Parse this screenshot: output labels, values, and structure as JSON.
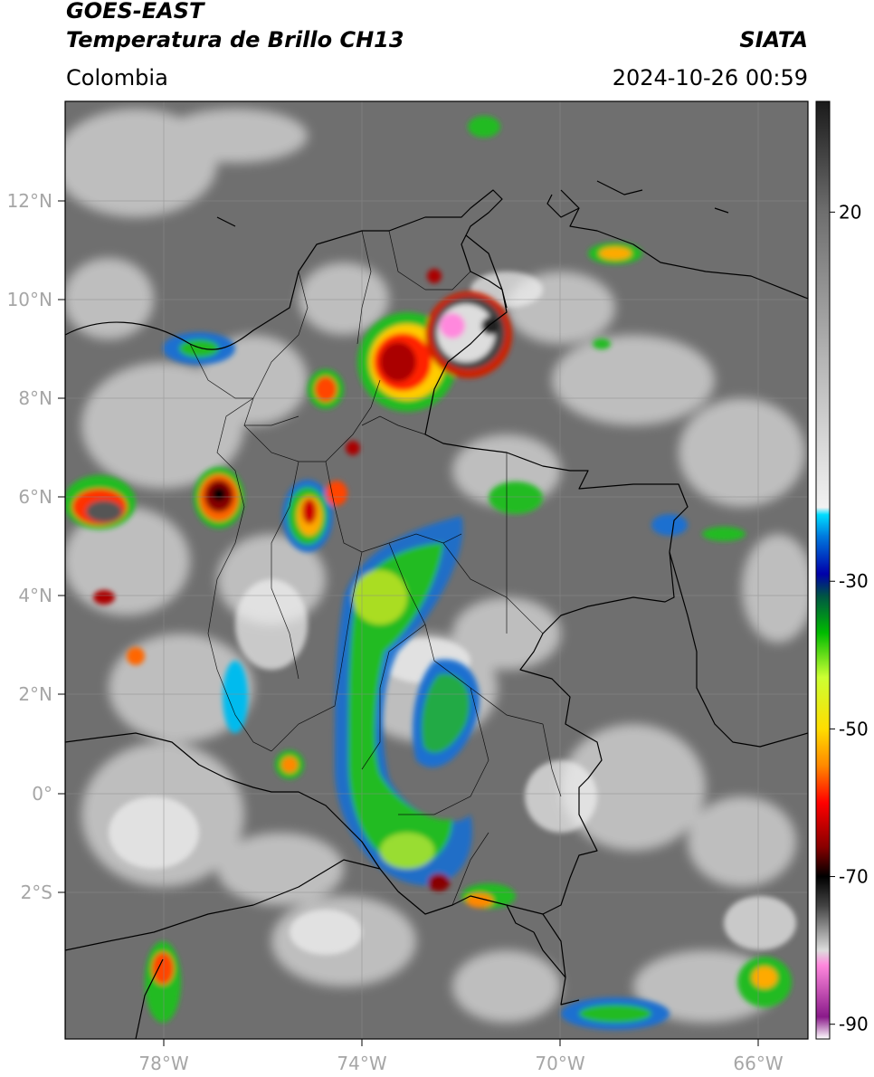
{
  "header": {
    "satellite": "GOES-EAST",
    "product": "Temperatura de Brillo CH13",
    "region": "Colombia",
    "source": "SIATA",
    "datetime": "2024-10-26 00:59"
  },
  "axes": {
    "lat_labels": [
      "12°N",
      "10°N",
      "8°N",
      "6°N",
      "4°N",
      "2°N",
      "0°",
      "2°S"
    ],
    "lat_values": [
      12,
      10,
      8,
      6,
      4,
      2,
      0,
      -2
    ],
    "lon_labels": [
      "78°W",
      "74°W",
      "70°W",
      "66°W"
    ],
    "lon_values": [
      -78,
      -74,
      -70,
      -66
    ],
    "lon_range": [
      -80,
      -65
    ],
    "lat_range": [
      -5,
      14
    ]
  },
  "colorbar": {
    "tick_labels": [
      "20",
      "-30",
      "-50",
      "-70",
      "-90"
    ],
    "tick_values": [
      20,
      -30,
      -50,
      -70,
      -90
    ],
    "range": [
      -92,
      35
    ],
    "stops": [
      {
        "v": -92,
        "c": "#ffffff"
      },
      {
        "v": -89,
        "c": "#8a1a8a"
      },
      {
        "v": -82,
        "c": "#ff88dd"
      },
      {
        "v": -80,
        "c": "#dddddd"
      },
      {
        "v": -74,
        "c": "#444444"
      },
      {
        "v": -70,
        "c": "#000000"
      },
      {
        "v": -66,
        "c": "#880000"
      },
      {
        "v": -60,
        "c": "#ff0000"
      },
      {
        "v": -55,
        "c": "#ff8800"
      },
      {
        "v": -50,
        "c": "#ffdd00"
      },
      {
        "v": -43,
        "c": "#ccff33"
      },
      {
        "v": -37,
        "c": "#00bb00"
      },
      {
        "v": -32,
        "c": "#005544"
      },
      {
        "v": -29,
        "c": "#0000aa"
      },
      {
        "v": -24,
        "c": "#0077dd"
      },
      {
        "v": -21,
        "c": "#00ddff"
      },
      {
        "v": -20,
        "c": "#f2f2f2"
      },
      {
        "v": 0,
        "c": "#b5b5b5"
      },
      {
        "v": 20,
        "c": "#6e6e6e"
      },
      {
        "v": 35,
        "c": "#1a1a1a"
      }
    ]
  },
  "colors": {
    "background": "#6f6f6f",
    "clouds": "#e8e8e8",
    "borders": "#000000"
  }
}
